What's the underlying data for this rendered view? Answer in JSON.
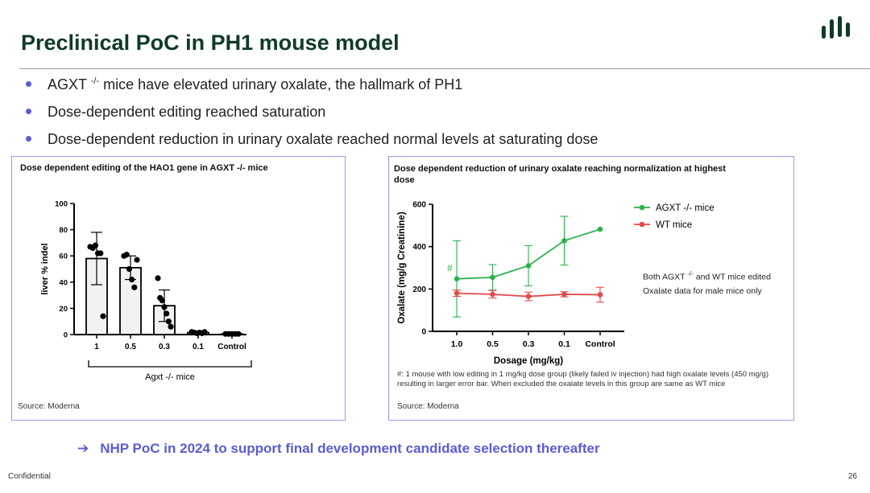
{
  "header": {
    "title": "Preclinical PoC in PH1 mouse model"
  },
  "bullets": [
    {
      "prefix": "AGXT ",
      "sup": "-/-",
      "suffix": " mice have elevated urinary oxalate, the hallmark of PH1"
    },
    {
      "text": "Dose-dependent editing reached saturation"
    },
    {
      "text": "Dose-dependent reduction in urinary oxalate reached normal levels at saturating dose"
    }
  ],
  "left_panel": {
    "title": "Dose dependent editing of the HAO1 gene in AGXT -/- mice",
    "source": "Source: Moderna",
    "bracket_label": "Agxt -/- mice"
  },
  "right_panel": {
    "title_line1": "Dose dependent reduction of urinary oxalate reaching normalization at highest",
    "title_line2": "dose",
    "note1_prefix": "Both AGXT ",
    "note1_sup": "-/-",
    "note1_suffix": " and WT mice edited",
    "note2": "Oxalate data for male mice only",
    "footnote": "#:  1 mouse with low editing in 1 mg/kg dose group (likely failed iv injection) had high oxalate levels (450 mg/g)  resulting in larger error bar. When excluded the oxalate levels in this group are same as WT mice",
    "source": "Source: Moderna"
  },
  "colors": {
    "accent": "#5b5bd6",
    "title_green": "#0f3b24",
    "agxt_green": "#2ab24a",
    "wt_red": "#e24b4b"
  },
  "chart_data": [
    {
      "type": "bar",
      "title": "Dose dependent editing of the HAO1 gene in AGXT -/- mice",
      "ylabel": "liver % indel",
      "xlabel": "",
      "ylim": [
        0,
        100
      ],
      "yticks": [
        0,
        20,
        40,
        60,
        80,
        100
      ],
      "categories": [
        "1",
        "0.5",
        "0.3",
        "0.1",
        "Control"
      ],
      "values": [
        58,
        51,
        22,
        1.5,
        0.5
      ],
      "error": [
        20,
        9,
        12,
        1,
        0.5
      ],
      "points": [
        [
          67,
          66,
          68,
          62,
          62,
          14
        ],
        [
          60,
          61,
          50,
          42,
          36,
          57
        ],
        [
          43,
          28,
          26,
          21,
          16,
          10,
          6
        ],
        [
          2,
          1.5,
          1,
          1.5,
          1,
          2
        ],
        [
          0.5,
          0.5,
          0.5,
          0.5,
          0.5
        ]
      ],
      "grid": false
    },
    {
      "type": "line",
      "title": "Dose dependent reduction of urinary oxalate reaching normalization at highest dose",
      "xlabel": "Dosage (mg/kg)",
      "ylabel": "Oxalate (mg/g Creatinine)",
      "ylim": [
        0,
        600
      ],
      "yticks": [
        0,
        200,
        400,
        600
      ],
      "categories": [
        "1.0",
        "0.5",
        "0.3",
        "0.1",
        "Control"
      ],
      "series": [
        {
          "name": "AGXT -/- mice",
          "color": "#2ab24a",
          "values": [
            248,
            255,
            310,
            428,
            482
          ],
          "error": [
            180,
            60,
            95,
            115,
            0
          ]
        },
        {
          "name": "WT mice",
          "color": "#e24b4b",
          "values": [
            180,
            175,
            165,
            175,
            173
          ],
          "error": [
            15,
            18,
            20,
            12,
            35
          ]
        }
      ],
      "annotation": "#",
      "legend": "top-right",
      "grid": false
    }
  ],
  "bottom": {
    "arrow": "➔",
    "text": "NHP PoC in 2024 to support final development candidate selection thereafter"
  },
  "footer": {
    "confidential": "Confidential",
    "page": "26"
  }
}
